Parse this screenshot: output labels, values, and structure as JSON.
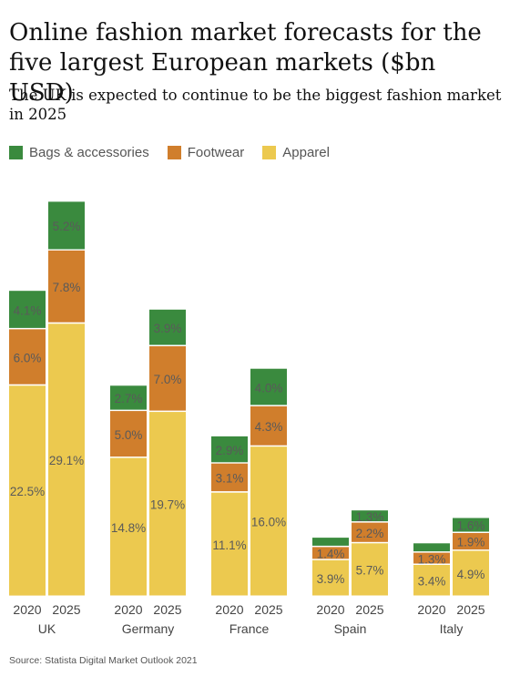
{
  "title": "Online fashion market forecasts for the five largest European markets ($bn USD)",
  "subtitle": "The UK is expected to continue to be the biggest fashion market in 2025",
  "source": "Source: Statista Digital Market Outlook 2021",
  "legend": [
    {
      "name": "Bags & accessories",
      "color": "#3a8a3e"
    },
    {
      "name": "Footwear",
      "color": "#d07e2c"
    },
    {
      "name": "Apparel",
      "color": "#ecc94f"
    }
  ],
  "chart_data": {
    "type": "bar",
    "stacked": true,
    "title": "Online fashion market forecasts for the five largest European markets ($bn USD)",
    "subtitle": "The UK is expected to continue to be the biggest fashion market in 2025",
    "legend_position": "top-left",
    "grid": false,
    "groups": [
      "UK",
      "Germany",
      "France",
      "Spain",
      "Italy"
    ],
    "categories": [
      "2020",
      "2025"
    ],
    "series": [
      {
        "name": "Apparel",
        "color": "#ecc94f",
        "values": [
          [
            22.5,
            29.1
          ],
          [
            14.8,
            19.7
          ],
          [
            11.1,
            16.0
          ],
          [
            3.9,
            5.7
          ],
          [
            3.4,
            4.9
          ]
        ],
        "labels": [
          [
            "22.5%",
            "29.1%"
          ],
          [
            "14.8%",
            "19.7%"
          ],
          [
            "11.1%",
            "16.0%"
          ],
          [
            "3.9%",
            "5.7%"
          ],
          [
            "3.4%",
            "4.9%"
          ]
        ]
      },
      {
        "name": "Footwear",
        "color": "#d07e2c",
        "values": [
          [
            6.0,
            7.8
          ],
          [
            5.0,
            7.0
          ],
          [
            3.1,
            4.3
          ],
          [
            1.4,
            2.2
          ],
          [
            1.3,
            1.9
          ]
        ],
        "labels": [
          [
            "6.0%",
            "7.8%"
          ],
          [
            "5.0%",
            "7.0%"
          ],
          [
            "3.1%",
            "4.3%"
          ],
          [
            "1.4%",
            "2.2%"
          ],
          [
            "1.3%",
            "1.9%"
          ]
        ]
      },
      {
        "name": "Bags & accessories",
        "color": "#3a8a3e",
        "values": [
          [
            4.1,
            5.2
          ],
          [
            2.7,
            3.9
          ],
          [
            2.9,
            4.0
          ],
          [
            1.0,
            1.3
          ],
          [
            1.0,
            1.6
          ]
        ],
        "labels": [
          [
            "4.1%",
            "5.2%"
          ],
          [
            "2.7%",
            "3.9%"
          ],
          [
            "2.9%",
            "4.0%"
          ],
          [
            "",
            "1.3%"
          ],
          [
            "",
            "1.6%"
          ]
        ]
      }
    ]
  }
}
